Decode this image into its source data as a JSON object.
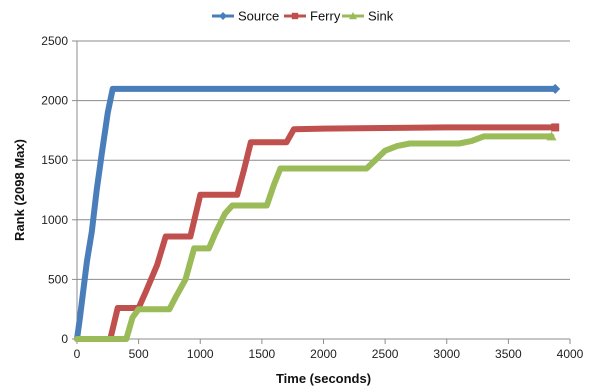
{
  "chart_data": {
    "type": "line",
    "xlabel": "Time (seconds)",
    "ylabel": "Rank (2098 Max)",
    "xlim": [
      0,
      4000
    ],
    "ylim": [
      0,
      2500
    ],
    "x_ticks": [
      0,
      500,
      1000,
      1500,
      2000,
      2500,
      3000,
      3500,
      4000
    ],
    "y_ticks": [
      0,
      500,
      1000,
      1500,
      2000,
      2500
    ],
    "grid": "horizontal",
    "legend_position": "top",
    "series": [
      {
        "name": "Source",
        "color": "#4a7ebb",
        "marker": "diamond",
        "points": [
          [
            0,
            0
          ],
          [
            20,
            150
          ],
          [
            50,
            400
          ],
          [
            80,
            650
          ],
          [
            120,
            900
          ],
          [
            160,
            1250
          ],
          [
            200,
            1550
          ],
          [
            250,
            1900
          ],
          [
            290,
            2098
          ],
          [
            500,
            2098
          ],
          [
            1000,
            2098
          ],
          [
            1500,
            2098
          ],
          [
            2000,
            2098
          ],
          [
            2500,
            2098
          ],
          [
            3000,
            2098
          ],
          [
            3500,
            2098
          ],
          [
            3880,
            2098
          ]
        ]
      },
      {
        "name": "Ferry",
        "color": "#c0504d",
        "marker": "square",
        "points": [
          [
            0,
            0
          ],
          [
            270,
            0
          ],
          [
            330,
            260
          ],
          [
            500,
            260
          ],
          [
            560,
            400
          ],
          [
            650,
            620
          ],
          [
            720,
            860
          ],
          [
            920,
            860
          ],
          [
            1000,
            1210
          ],
          [
            1300,
            1210
          ],
          [
            1350,
            1400
          ],
          [
            1410,
            1650
          ],
          [
            1700,
            1650
          ],
          [
            1760,
            1760
          ],
          [
            2000,
            1765
          ],
          [
            2500,
            1770
          ],
          [
            3000,
            1775
          ],
          [
            3500,
            1775
          ],
          [
            3880,
            1775
          ]
        ]
      },
      {
        "name": "Sink",
        "color": "#9bbb59",
        "marker": "triangle",
        "points": [
          [
            0,
            0
          ],
          [
            400,
            0
          ],
          [
            450,
            180
          ],
          [
            500,
            250
          ],
          [
            750,
            250
          ],
          [
            800,
            350
          ],
          [
            880,
            500
          ],
          [
            950,
            760
          ],
          [
            1070,
            760
          ],
          [
            1120,
            880
          ],
          [
            1200,
            1050
          ],
          [
            1260,
            1120
          ],
          [
            1540,
            1120
          ],
          [
            1600,
            1300
          ],
          [
            1650,
            1430
          ],
          [
            2350,
            1430
          ],
          [
            2400,
            1480
          ],
          [
            2500,
            1580
          ],
          [
            2600,
            1620
          ],
          [
            2700,
            1640
          ],
          [
            3100,
            1640
          ],
          [
            3200,
            1660
          ],
          [
            3300,
            1700
          ],
          [
            3850,
            1700
          ]
        ]
      }
    ]
  }
}
